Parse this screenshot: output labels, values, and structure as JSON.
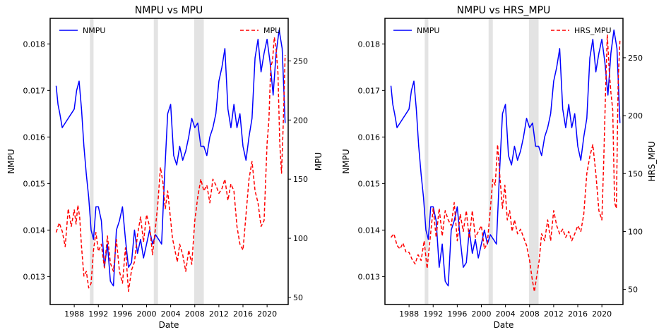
{
  "chart_data": [
    {
      "type": "line",
      "title": "NMPU vs MPU",
      "xlabel": "Date",
      "ylabel_left": "NMPU",
      "ylabel_right": "MPU",
      "xlim": [
        1984.0,
        2023.5
      ],
      "ylim_left": [
        0.0124,
        0.01855
      ],
      "ylim_right": [
        44,
        286
      ],
      "xticks": [
        1988,
        1992,
        1996,
        2000,
        2004,
        2008,
        2012,
        2016,
        2020
      ],
      "xtick_labels": [
        "1988",
        "1992",
        "1996",
        "2000",
        "2004",
        "2008",
        "2012",
        "2016",
        "2020"
      ],
      "yticks_left": [
        0.013,
        0.014,
        0.015,
        0.016,
        0.017,
        0.018
      ],
      "ytick_labels_left": [
        "0.013",
        "0.014",
        "0.015",
        "0.016",
        "0.017",
        "0.018"
      ],
      "yticks_right": [
        50,
        100,
        150,
        200,
        250
      ],
      "ytick_labels_right": [
        "50",
        "100",
        "150",
        "200",
        "250"
      ],
      "recessions": [
        [
          1990.6,
          1991.2
        ],
        [
          2001.2,
          2001.9
        ],
        [
          2007.9,
          2009.5
        ]
      ],
      "legend_left": {
        "label": "NMPU",
        "placement": "top-left"
      },
      "legend_right": {
        "label": "MPU",
        "placement": "top-right"
      },
      "series": [
        {
          "name": "NMPU",
          "axis": "left",
          "color": "#0000ff",
          "dash": "solid",
          "x": [
            1985.0,
            1985.3,
            1985.6,
            1986.0,
            1986.5,
            1987.0,
            1987.5,
            1988.0,
            1988.4,
            1988.8,
            1989.2,
            1989.6,
            1990.0,
            1990.4,
            1990.8,
            1991.2,
            1991.6,
            1992.0,
            1992.5,
            1993.0,
            1993.5,
            1994.0,
            1994.5,
            1995.0,
            1995.5,
            1996.0,
            1996.5,
            1997.0,
            1997.5,
            1998.0,
            1998.5,
            1999.0,
            1999.5,
            2000.0,
            2000.5,
            2001.0,
            2001.5,
            2002.0,
            2002.5,
            2003.0,
            2003.5,
            2004.0,
            2004.5,
            2005.0,
            2005.5,
            2006.0,
            2006.5,
            2007.0,
            2007.5,
            2008.0,
            2008.5,
            2009.0,
            2009.5,
            2010.0,
            2010.5,
            2011.0,
            2011.5,
            2012.0,
            2012.5,
            2013.0,
            2013.5,
            2014.0,
            2014.5,
            2015.0,
            2015.5,
            2016.0,
            2016.5,
            2017.0,
            2017.5,
            2018.0,
            2018.5,
            2019.0,
            2019.5,
            2020.0,
            2020.5,
            2021.0,
            2021.5,
            2022.0,
            2022.5,
            2023.0
          ],
          "values": [
            0.0171,
            0.0167,
            0.0165,
            0.0162,
            0.0163,
            0.0164,
            0.0165,
            0.0166,
            0.017,
            0.0172,
            0.0166,
            0.0158,
            0.0152,
            0.0147,
            0.014,
            0.0138,
            0.0145,
            0.0145,
            0.0142,
            0.0132,
            0.0137,
            0.0129,
            0.0128,
            0.014,
            0.0142,
            0.0145,
            0.0138,
            0.0132,
            0.0133,
            0.014,
            0.0135,
            0.0138,
            0.0134,
            0.0137,
            0.014,
            0.0137,
            0.0139,
            0.0138,
            0.0137,
            0.0152,
            0.0165,
            0.0167,
            0.0156,
            0.0154,
            0.0158,
            0.0155,
            0.0157,
            0.016,
            0.0164,
            0.0162,
            0.0163,
            0.0158,
            0.0158,
            0.0156,
            0.016,
            0.0162,
            0.0165,
            0.0172,
            0.0175,
            0.0179,
            0.0166,
            0.0162,
            0.0167,
            0.0162,
            0.0165,
            0.0158,
            0.0155,
            0.016,
            0.0164,
            0.0177,
            0.0181,
            0.0174,
            0.0178,
            0.0181,
            0.0176,
            0.0169,
            0.0178,
            0.0183,
            0.0179,
            0.0163
          ]
        },
        {
          "name": "MPU",
          "axis": "right",
          "color": "#ff0000",
          "dash": "dashed",
          "x": [
            1985.0,
            1985.5,
            1986.0,
            1986.5,
            1987.0,
            1987.5,
            1988.0,
            1988.3,
            1988.6,
            1988.9,
            1989.2,
            1989.6,
            1990.0,
            1990.4,
            1990.8,
            1991.2,
            1991.6,
            1992.0,
            1992.5,
            1993.0,
            1993.5,
            1994.0,
            1994.5,
            1995.0,
            1995.5,
            1996.0,
            1996.5,
            1997.0,
            1997.5,
            1998.0,
            1998.5,
            1999.0,
            1999.5,
            2000.0,
            2000.5,
            2001.0,
            2001.5,
            2001.9,
            2002.3,
            2002.7,
            2003.1,
            2003.5,
            2003.9,
            2004.3,
            2004.7,
            2005.1,
            2005.5,
            2006.0,
            2006.5,
            2007.0,
            2007.5,
            2008.0,
            2008.5,
            2009.0,
            2009.5,
            2010.0,
            2010.5,
            2011.0,
            2011.5,
            2012.0,
            2012.5,
            2013.0,
            2013.5,
            2014.0,
            2014.5,
            2015.0,
            2015.5,
            2016.0,
            2016.5,
            2017.0,
            2017.5,
            2018.0,
            2018.5,
            2019.0,
            2019.5,
            2020.0,
            2020.3,
            2020.6,
            2020.9,
            2021.2,
            2021.5,
            2021.8,
            2022.1,
            2022.4,
            2022.7,
            2023.0
          ],
          "values": [
            105,
            113,
            106,
            93,
            125,
            110,
            124,
            112,
            128,
            118,
            93,
            68,
            72,
            58,
            62,
            90,
            105,
            89,
            95,
            75,
            102,
            79,
            72,
            99,
            72,
            62,
            92,
            55,
            73,
            80,
            103,
            118,
            97,
            120,
            110,
            86,
            110,
            131,
            160,
            148,
            125,
            140,
            120,
            100,
            90,
            80,
            95,
            86,
            72,
            90,
            78,
            115,
            135,
            150,
            140,
            145,
            130,
            150,
            145,
            138,
            142,
            150,
            132,
            146,
            140,
            110,
            95,
            90,
            120,
            150,
            165,
            140,
            130,
            110,
            115,
            180,
            200,
            245,
            250,
            270,
            260,
            240,
            180,
            155,
            200,
            255
          ]
        }
      ]
    },
    {
      "type": "line",
      "title": "NMPU vs HRS_MPU",
      "xlabel": "Date",
      "ylabel_left": "NMPU",
      "ylabel_right": "HRS_MPU",
      "xlim": [
        1984.0,
        2023.5
      ],
      "ylim_left": [
        0.0124,
        0.01855
      ],
      "ylim_right": [
        37,
        284
      ],
      "xticks": [
        1988,
        1992,
        1996,
        2000,
        2004,
        2008,
        2012,
        2016,
        2020
      ],
      "xtick_labels": [
        "1988",
        "1992",
        "1996",
        "2000",
        "2004",
        "2008",
        "2012",
        "2016",
        "2020"
      ],
      "yticks_left": [
        0.013,
        0.014,
        0.015,
        0.016,
        0.017,
        0.018
      ],
      "ytick_labels_left": [
        "0.013",
        "0.014",
        "0.015",
        "0.016",
        "0.017",
        "0.018"
      ],
      "yticks_right": [
        50,
        100,
        150,
        200,
        250
      ],
      "ytick_labels_right": [
        "50",
        "100",
        "150",
        "200",
        "250"
      ],
      "recessions": [
        [
          1990.6,
          1991.2
        ],
        [
          2001.2,
          2001.9
        ],
        [
          2007.9,
          2009.5
        ]
      ],
      "legend_left": {
        "label": "NMPU",
        "placement": "top-left"
      },
      "legend_right": {
        "label": "HRS_MPU",
        "placement": "top-right"
      },
      "series": [
        {
          "name": "NMPU",
          "axis": "left",
          "color": "#0000ff",
          "dash": "solid",
          "x": [
            1985.0,
            1985.3,
            1985.6,
            1986.0,
            1986.5,
            1987.0,
            1987.5,
            1988.0,
            1988.4,
            1988.8,
            1989.2,
            1989.6,
            1990.0,
            1990.4,
            1990.8,
            1991.2,
            1991.6,
            1992.0,
            1992.5,
            1993.0,
            1993.5,
            1994.0,
            1994.5,
            1995.0,
            1995.5,
            1996.0,
            1996.5,
            1997.0,
            1997.5,
            1998.0,
            1998.5,
            1999.0,
            1999.5,
            2000.0,
            2000.5,
            2001.0,
            2001.5,
            2002.0,
            2002.5,
            2003.0,
            2003.5,
            2004.0,
            2004.5,
            2005.0,
            2005.5,
            2006.0,
            2006.5,
            2007.0,
            2007.5,
            2008.0,
            2008.5,
            2009.0,
            2009.5,
            2010.0,
            2010.5,
            2011.0,
            2011.5,
            2012.0,
            2012.5,
            2013.0,
            2013.5,
            2014.0,
            2014.5,
            2015.0,
            2015.5,
            2016.0,
            2016.5,
            2017.0,
            2017.5,
            2018.0,
            2018.5,
            2019.0,
            2019.5,
            2020.0,
            2020.5,
            2021.0,
            2021.5,
            2022.0,
            2022.5,
            2023.0
          ],
          "values": [
            0.0171,
            0.0167,
            0.0165,
            0.0162,
            0.0163,
            0.0164,
            0.0165,
            0.0166,
            0.017,
            0.0172,
            0.0166,
            0.0158,
            0.0152,
            0.0147,
            0.014,
            0.0138,
            0.0145,
            0.0145,
            0.0142,
            0.0132,
            0.0137,
            0.0129,
            0.0128,
            0.014,
            0.0142,
            0.0145,
            0.0138,
            0.0132,
            0.0133,
            0.014,
            0.0135,
            0.0138,
            0.0134,
            0.0137,
            0.014,
            0.0137,
            0.0139,
            0.0138,
            0.0137,
            0.0152,
            0.0165,
            0.0167,
            0.0156,
            0.0154,
            0.0158,
            0.0155,
            0.0157,
            0.016,
            0.0164,
            0.0162,
            0.0163,
            0.0158,
            0.0158,
            0.0156,
            0.016,
            0.0162,
            0.0165,
            0.0172,
            0.0175,
            0.0179,
            0.0166,
            0.0162,
            0.0167,
            0.0162,
            0.0165,
            0.0158,
            0.0155,
            0.016,
            0.0164,
            0.0177,
            0.0181,
            0.0174,
            0.0178,
            0.0181,
            0.0176,
            0.0169,
            0.0178,
            0.0183,
            0.0179,
            0.0163
          ]
        },
        {
          "name": "HRS_MPU",
          "axis": "right",
          "color": "#ff0000",
          "dash": "dashed",
          "x": [
            1985.0,
            1985.5,
            1986.0,
            1986.5,
            1987.0,
            1987.5,
            1988.0,
            1988.5,
            1989.0,
            1989.5,
            1990.0,
            1990.5,
            1991.0,
            1991.5,
            1992.0,
            1992.5,
            1993.0,
            1993.5,
            1994.0,
            1994.5,
            1995.0,
            1995.5,
            1996.0,
            1996.5,
            1997.0,
            1997.5,
            1998.0,
            1998.5,
            1999.0,
            1999.5,
            2000.0,
            2000.5,
            2001.0,
            2001.5,
            2001.9,
            2002.3,
            2002.7,
            2003.1,
            2003.5,
            2003.9,
            2004.3,
            2004.7,
            2005.1,
            2005.5,
            2006.0,
            2006.5,
            2007.0,
            2007.5,
            2008.0,
            2008.4,
            2008.8,
            2009.2,
            2009.6,
            2010.0,
            2010.5,
            2011.0,
            2011.5,
            2012.0,
            2012.5,
            2013.0,
            2013.5,
            2014.0,
            2014.5,
            2015.0,
            2015.5,
            2016.0,
            2016.5,
            2017.0,
            2017.5,
            2018.0,
            2018.5,
            2019.0,
            2019.5,
            2020.0,
            2020.3,
            2020.6,
            2020.9,
            2021.2,
            2021.5,
            2021.8,
            2022.1,
            2022.4,
            2022.7,
            2023.0
          ],
          "values": [
            95,
            98,
            88,
            85,
            90,
            82,
            82,
            76,
            72,
            80,
            75,
            92,
            68,
            94,
            120,
            95,
            120,
            96,
            118,
            110,
            105,
            125,
            92,
            115,
            100,
            118,
            94,
            118,
            95,
            100,
            105,
            85,
            90,
            120,
            145,
            140,
            175,
            145,
            120,
            140,
            110,
            118,
            100,
            110,
            98,
            102,
            95,
            88,
            75,
            60,
            48,
            62,
            75,
            98,
            92,
            110,
            92,
            118,
            105,
            98,
            102,
            95,
            100,
            92,
            98,
            105,
            100,
            115,
            150,
            165,
            175,
            150,
            118,
            110,
            160,
            220,
            270,
            240,
            220,
            205,
            125,
            120,
            230,
            265
          ]
        }
      ]
    }
  ]
}
